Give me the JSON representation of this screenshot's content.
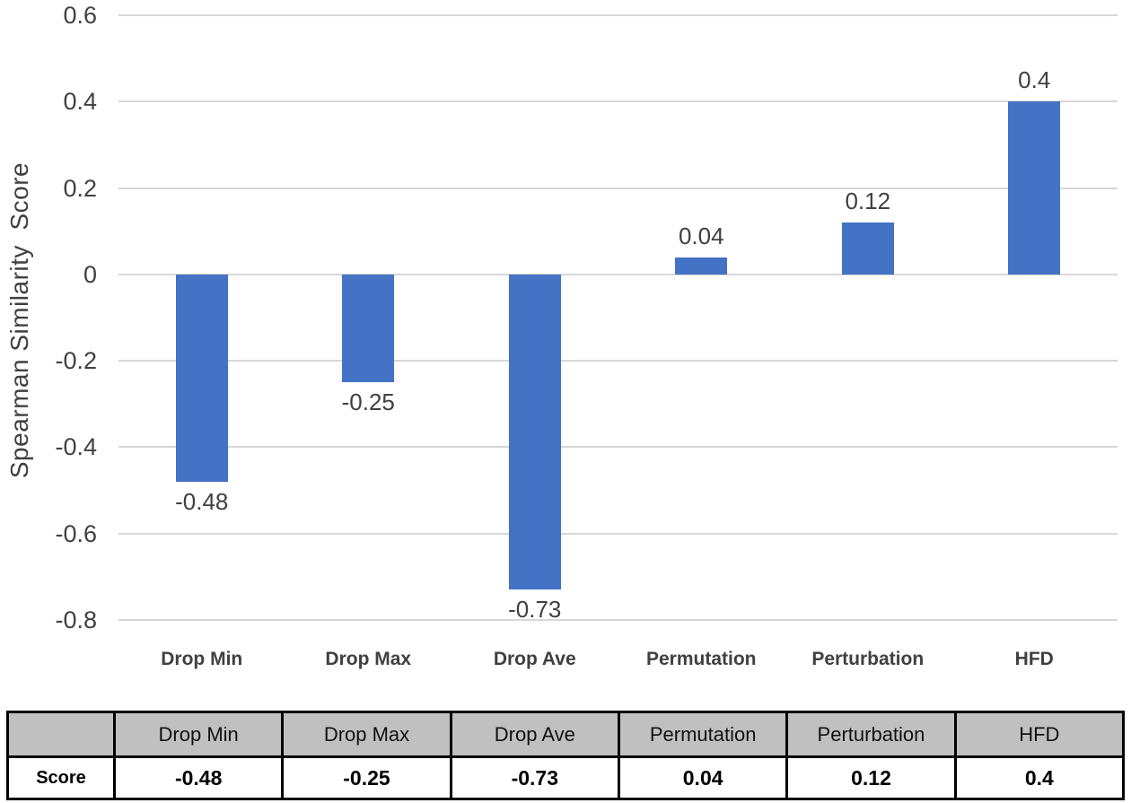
{
  "chart_data": {
    "type": "bar",
    "categories": [
      "Drop Min",
      "Drop Max",
      "Drop Ave",
      "Permutation",
      "Perturbation",
      "HFD"
    ],
    "values": [
      -0.48,
      -0.25,
      -0.73,
      0.04,
      0.12,
      0.4
    ],
    "data_labels": [
      "-0.48",
      "-0.25",
      "-0.73",
      "0.04",
      "0.12",
      "0.4"
    ],
    "title": "",
    "xlabel": "",
    "ylabel": "Spearman Similarity  Score",
    "ylim": [
      -0.8,
      0.6
    ],
    "yticks": [
      0.6,
      0.4,
      0.2,
      0,
      -0.2,
      -0.4,
      -0.6,
      -0.8
    ],
    "ytick_labels": [
      "0.6",
      "0.4",
      "0.2",
      "0",
      "-0.2",
      "-0.4",
      "-0.6",
      "-0.8"
    ],
    "grid": true,
    "legend": false,
    "legend_position": "none",
    "bar_color": "#4472C4",
    "gridline_color": "#D7D7D7",
    "text_color": "#404040"
  },
  "table": {
    "corner_label": "",
    "row_label": "Score",
    "column_headers": [
      "Drop Min",
      "Drop Max",
      "Drop Ave",
      "Permutation",
      "Perturbation",
      "HFD"
    ],
    "row_values": [
      "-0.48",
      "-0.25",
      "-0.73",
      "0.04",
      "0.12",
      "0.4"
    ],
    "header_bg_color": "#C0C0C0",
    "border_color": "#000000"
  }
}
